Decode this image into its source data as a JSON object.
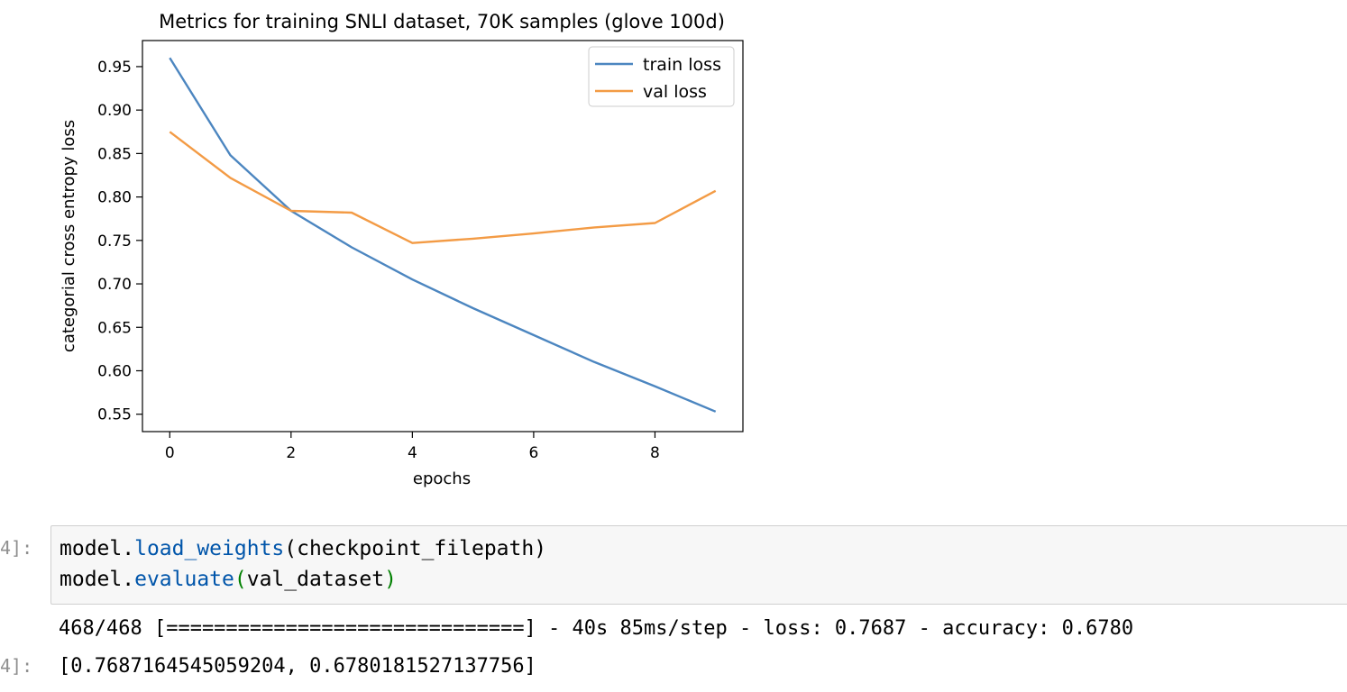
{
  "chart_data": {
    "type": "line",
    "title": "Metrics for training SNLI dataset, 70K samples (glove 100d)",
    "xlabel": "epochs",
    "ylabel": "categorial cross entropy loss",
    "x": [
      0,
      1,
      2,
      3,
      4,
      5,
      6,
      7,
      8,
      9
    ],
    "xlim": [
      -0.45,
      9.45
    ],
    "ylim": [
      0.53,
      0.98
    ],
    "xticks": [
      "0",
      "2",
      "4",
      "6",
      "8"
    ],
    "yticks": [
      "0.55",
      "0.60",
      "0.65",
      "0.70",
      "0.75",
      "0.80",
      "0.85",
      "0.90",
      "0.95"
    ],
    "series": [
      {
        "name": "train loss",
        "color": "#4c86c0",
        "values": [
          0.96,
          0.848,
          0.784,
          0.742,
          0.705,
          0.672,
          0.641,
          0.61,
          0.582,
          0.553
        ]
      },
      {
        "name": "val loss",
        "color": "#f39b45",
        "values": [
          0.875,
          0.822,
          0.784,
          0.782,
          0.747,
          0.752,
          0.758,
          0.765,
          0.77,
          0.807
        ]
      }
    ],
    "legend": "top-right",
    "grid": false
  },
  "cell": {
    "input_prompt": "4]:",
    "output_prompt": "4]:",
    "code": {
      "line1_obj": "model.",
      "line1_fn": "load_weights",
      "line1_args": "(checkpoint_filepath)",
      "line2_obj": "model.",
      "line2_fn": "evaluate",
      "line2_open": "(",
      "line2_args": "val_dataset",
      "line2_close": ")"
    },
    "stdout": "468/468 [==============================] - 40s 85ms/step - loss: 0.7687 - accuracy: 0.6780",
    "result": "[0.7687164545059204, 0.6780181527137756]"
  }
}
